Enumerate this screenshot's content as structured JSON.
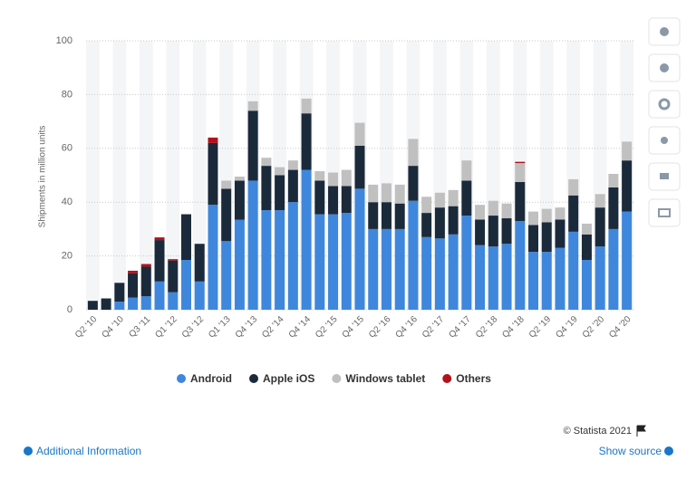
{
  "chart_data": {
    "type": "stacked_bar",
    "y_axis_label": "Shipments in million units",
    "categories": [
      "Q2 '10",
      null,
      "Q4 '10",
      null,
      "Q3 '11",
      null,
      "Q1 '12",
      null,
      "Q3 '12",
      null,
      "Q1 '13",
      null,
      "Q4 '13",
      null,
      "Q2 '14",
      null,
      "Q4 '14",
      null,
      "Q2 '15",
      null,
      "Q4 '15",
      null,
      "Q2 '16",
      null,
      "Q4 '16",
      null,
      "Q2 '17",
      null,
      "Q4 '17",
      null,
      "Q2 '18",
      null,
      "Q4 '18",
      null,
      "Q2 '19",
      null,
      "Q4 '19",
      null,
      "Q2 '20",
      null,
      "Q4 '20"
    ],
    "series": [
      {
        "name": "Android",
        "color": "#3f87dc",
        "values": [
          0,
          0,
          3,
          4.5,
          5,
          10.5,
          6.5,
          18.5,
          10.5,
          39,
          25.5,
          33.5,
          48,
          37,
          37,
          40,
          52,
          35.5,
          35.5,
          36,
          45,
          30,
          30,
          30,
          40.5,
          27,
          26.5,
          28,
          35,
          24,
          23.5,
          24.5,
          33,
          21.5,
          21.5,
          23,
          29,
          18.5,
          23.5,
          30,
          36.5
        ]
      },
      {
        "name": "Apple iOS",
        "color": "#1b2a3b",
        "values": [
          3.3,
          4.2,
          7,
          9,
          11,
          15.4,
          11.8,
          17,
          14,
          23,
          19.5,
          14.5,
          26,
          16.5,
          13,
          12,
          21,
          12.5,
          10.5,
          10,
          16,
          10,
          10,
          9.5,
          13,
          9,
          11.5,
          10.5,
          13,
          9.5,
          11.5,
          9.5,
          14.5,
          10,
          11,
          10.5,
          13.5,
          9.5,
          14.5,
          15.5,
          19
        ]
      },
      {
        "name": "Windows tablet",
        "color": "#c0c0c0",
        "values": [
          0,
          0,
          0,
          0,
          0,
          0,
          0,
          0,
          0,
          0,
          3,
          1.5,
          3.5,
          3,
          3,
          3.5,
          5.5,
          3.5,
          5,
          6,
          8.5,
          6.5,
          7,
          7,
          10,
          6,
          5.5,
          6,
          7.5,
          5.5,
          5.5,
          5.5,
          7,
          5,
          5,
          4.5,
          6,
          4,
          5,
          5,
          7
        ]
      },
      {
        "name": "Others",
        "color": "#b3121b",
        "values": [
          0,
          0,
          0,
          1,
          1,
          1,
          0.5,
          0,
          0,
          2,
          0,
          0,
          0,
          0,
          0,
          0,
          0,
          0,
          0,
          0,
          0,
          0,
          0,
          0,
          0,
          0,
          0,
          0,
          0,
          0,
          0,
          0,
          0.5,
          0,
          0,
          0,
          0,
          0,
          0,
          0,
          0
        ]
      }
    ],
    "ylim": [
      0,
      100
    ],
    "yticks": [
      0,
      20,
      40,
      60,
      80,
      100
    ],
    "grid": true
  },
  "footer": {
    "copyright": "© Statista 2021",
    "additional_info": "Additional Information",
    "show_source": "Show source"
  }
}
